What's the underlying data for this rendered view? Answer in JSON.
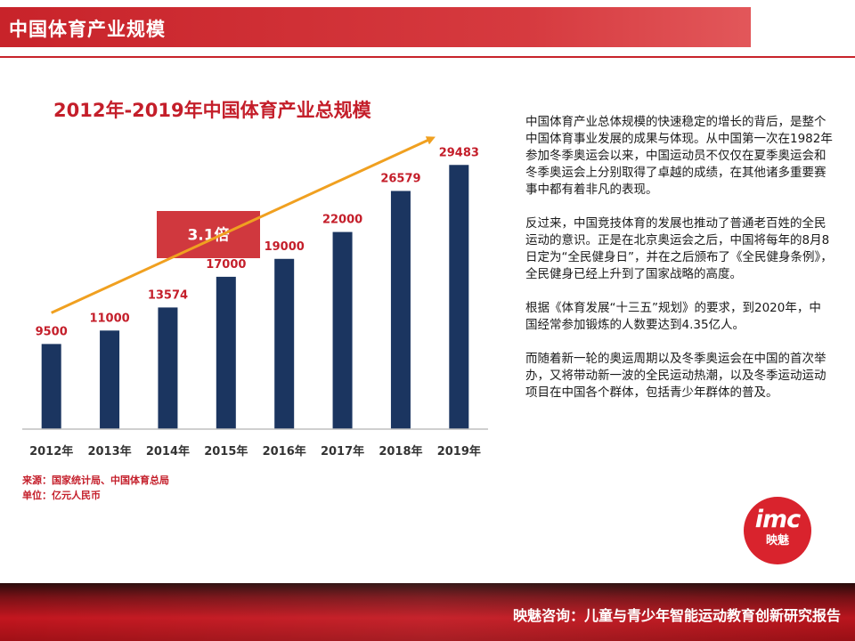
{
  "header": {
    "title": "中国体育产业规模"
  },
  "chart_data": {
    "type": "bar",
    "title": "2012年-2019年中国体育产业总规模",
    "categories": [
      "2012年",
      "2013年",
      "2014年",
      "2015年",
      "2016年",
      "2017年",
      "2018年",
      "2019年"
    ],
    "values": [
      9500,
      11000,
      13574,
      17000,
      19000,
      22000,
      26579,
      29483
    ],
    "data_labels": [
      "9500",
      "11000",
      "13574",
      "17000",
      "19000",
      "22000",
      "26579",
      "29483"
    ],
    "ylim": [
      0,
      31000
    ],
    "grid": false,
    "legend": "none",
    "bar_color": "#1b3560",
    "label_color": "#c41e2a",
    "annotation": {
      "text": "3.1倍",
      "color": "#d0383e"
    },
    "trend_arrow": {
      "color": "#f0a020",
      "from_category": "2012年",
      "to_category": "2019年"
    }
  },
  "source": {
    "line1": "来源：国家统计局、中国体育总局",
    "line2": "单位：亿元人民币"
  },
  "body_text": {
    "p1": "中国体育产业总体规模的快速稳定的增长的背后，是整个中国体育事业发展的成果与体现。从中国第一次在1982年参加冬季奥运会以来，中国运动员不仅仅在夏季奥运会和冬季奥运会上分别取得了卓越的成绩，在其他诸多重要赛事中都有着非凡的表现。",
    "p2": "反过来，中国竞技体育的发展也推动了普通老百姓的全民运动的意识。正是在北京奥运会之后，中国将每年的8月8日定为“全民健身日”，并在之后颁布了《全民健身条例》，全民健身已经上升到了国家战略的高度。",
    "p3": "根据《体育发展“十三五”规划》的要求，到2020年，中国经常参加锻炼的人数要达到4.35亿人。",
    "p4": "而随着新一轮的奥运周期以及冬季奥运会在中国的首次举办，又将带动新一波的全民运动热潮，以及冬季运动运动项目在中国各个群体，包括青少年群体的普及。"
  },
  "logo": {
    "mark": "imc",
    "sub": "映魅"
  },
  "footer": {
    "text": "映魅咨询：儿童与青少年智能运动教育创新研究报告"
  },
  "colors": {
    "brand_red": "#c8232a"
  }
}
